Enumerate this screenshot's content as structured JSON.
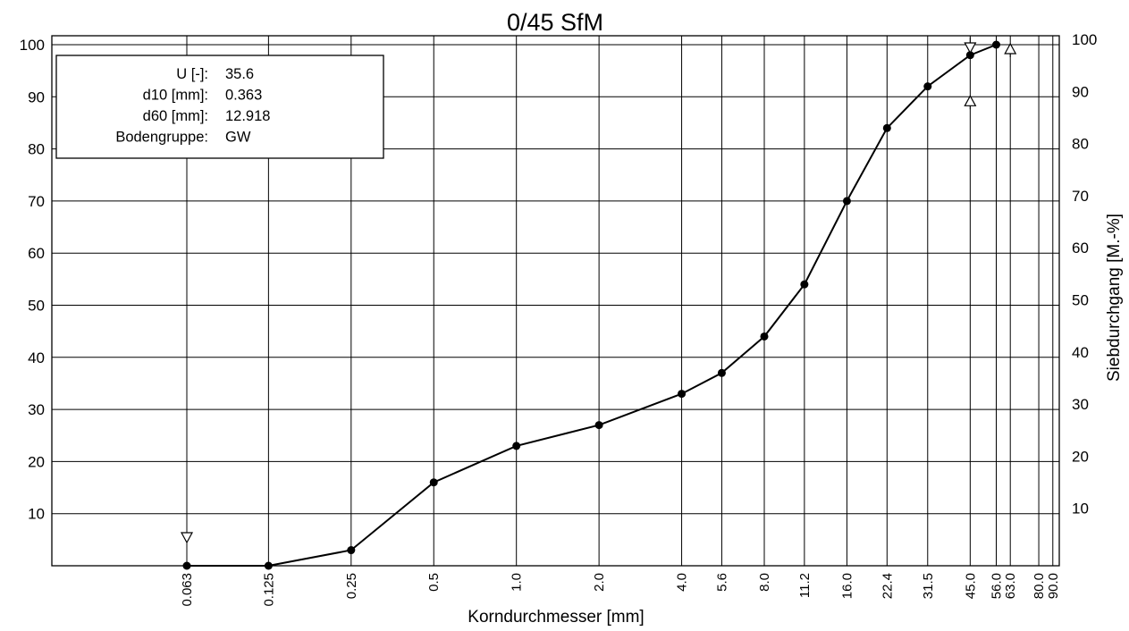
{
  "chart_data": {
    "type": "line",
    "title": "0/45 SfM",
    "xlabel": "Korndurchmesser  [mm]",
    "ylabel_right": "Siebdurchgang  [M.-%]",
    "x_scale": "log",
    "ylim": [
      0,
      100
    ],
    "y_ticks_left": [
      "10",
      "20",
      "30",
      "40",
      "50",
      "60",
      "70",
      "80",
      "90",
      "100"
    ],
    "y_ticks_right": [
      "10",
      "20",
      "30",
      "40",
      "50",
      "60",
      "70",
      "80",
      "90",
      "100"
    ],
    "x_ticks": [
      "0.063",
      "0.125",
      "0.25",
      "0.5",
      "1.0",
      "2.0",
      "4.0",
      "5.6",
      "8.0",
      "11.2",
      "16.0",
      "22.4",
      "31.5",
      "45.0",
      "56.0",
      "63.0",
      "80.0",
      "90.0"
    ],
    "x_tick_values": [
      0.063,
      0.125,
      0.25,
      0.5,
      1.0,
      2.0,
      4.0,
      5.6,
      8.0,
      11.2,
      16.0,
      22.4,
      31.5,
      45.0,
      56.0,
      63.0,
      80.0,
      90.0
    ],
    "grid": true,
    "series": [
      {
        "x": [
          0.063,
          0.125,
          0.25,
          0.5,
          1.0,
          2.0,
          4.0,
          5.6,
          8.0,
          11.2,
          16.0,
          22.4,
          31.5,
          45.0,
          56.0
        ],
        "y": [
          0,
          0,
          3,
          16,
          23,
          27,
          33,
          37,
          44,
          54,
          70,
          84,
          92,
          98,
          100
        ]
      }
    ],
    "markers": [
      {
        "x": 0.063,
        "kind": "down",
        "y": 6
      },
      {
        "x": 45.0,
        "kind": "down",
        "y": 100
      },
      {
        "x": 45.0,
        "kind": "up",
        "y": 90
      },
      {
        "x": 63.0,
        "kind": "up",
        "y": 100
      }
    ],
    "info_box": [
      {
        "label": "U [-]:",
        "value": "35.6"
      },
      {
        "label": "d10 [mm]:",
        "value": "0.363"
      },
      {
        "label": "d60 [mm]:",
        "value": "12.918"
      },
      {
        "label": "Bodengruppe:",
        "value": "GW"
      }
    ],
    "colors": {
      "line": "#000000",
      "grid": "#000000",
      "background": "#ffffff"
    }
  }
}
